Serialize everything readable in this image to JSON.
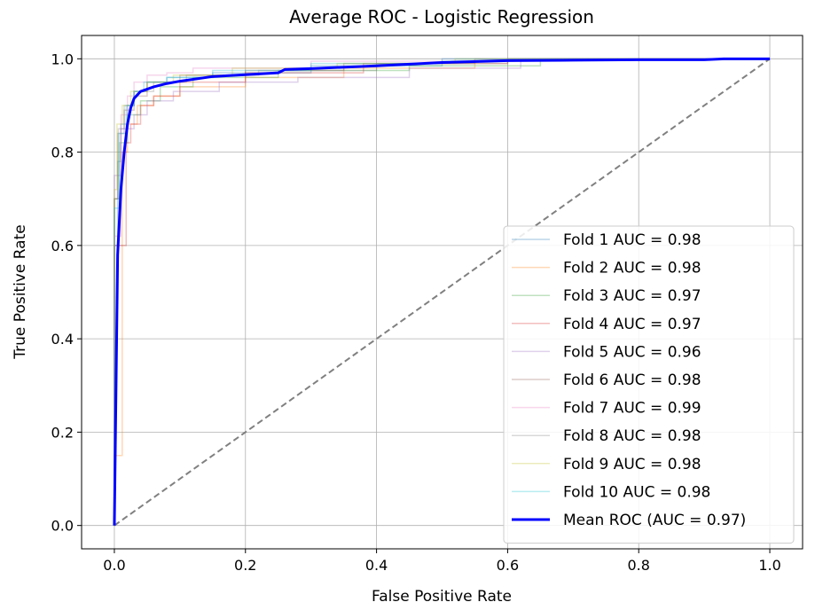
{
  "chart_data": {
    "type": "line",
    "title": "Average ROC - Logistic Regression",
    "xlabel": "False Positive Rate",
    "ylabel": "True Positive Rate",
    "xlim": [
      -0.05,
      1.05
    ],
    "ylim": [
      -0.05,
      1.05
    ],
    "xticks": [
      0.0,
      0.2,
      0.4,
      0.6,
      0.8,
      1.0
    ],
    "yticks": [
      0.0,
      0.2,
      0.4,
      0.6,
      0.8,
      1.0
    ],
    "xtick_labels": [
      "0.0",
      "0.2",
      "0.4",
      "0.6",
      "0.8",
      "1.0"
    ],
    "ytick_labels": [
      "0.0",
      "0.2",
      "0.4",
      "0.6",
      "0.8",
      "1.0"
    ],
    "grid": true,
    "legend_position": "lower-right",
    "chance_line": {
      "x": [
        0,
        1
      ],
      "y": [
        0,
        1
      ],
      "color": "#808080",
      "style": "dashed"
    },
    "series": [
      {
        "name": "Fold 1 AUC = 0.98",
        "color": "#1f77b4",
        "opacity": 0.3,
        "x": [
          0,
          0,
          0.005,
          0.005,
          0.01,
          0.01,
          0.02,
          0.02,
          0.03,
          0.03,
          0.05,
          0.05,
          0.08,
          0.08,
          0.15,
          0.15,
          0.3,
          0.3,
          0.5,
          0.5,
          0.7,
          1.0
        ],
        "y": [
          0,
          0.6,
          0.6,
          0.78,
          0.78,
          0.86,
          0.86,
          0.9,
          0.9,
          0.93,
          0.93,
          0.95,
          0.95,
          0.96,
          0.96,
          0.97,
          0.97,
          0.985,
          0.985,
          0.995,
          1.0,
          1.0
        ]
      },
      {
        "name": "Fold 2 AUC = 0.98",
        "color": "#ff7f0e",
        "opacity": 0.3,
        "x": [
          0,
          0,
          0.012,
          0.012,
          0.02,
          0.02,
          0.035,
          0.035,
          0.06,
          0.06,
          0.1,
          0.1,
          0.2,
          0.2,
          0.35,
          0.35,
          0.55,
          0.55,
          0.75,
          1.0
        ],
        "y": [
          0,
          0.15,
          0.15,
          0.8,
          0.8,
          0.86,
          0.86,
          0.9,
          0.9,
          0.92,
          0.92,
          0.94,
          0.94,
          0.96,
          0.96,
          0.98,
          0.98,
          0.995,
          1.0,
          1.0
        ]
      },
      {
        "name": "Fold 3 AUC = 0.97",
        "color": "#2ca02c",
        "opacity": 0.3,
        "x": [
          0,
          0,
          0.008,
          0.008,
          0.02,
          0.02,
          0.04,
          0.04,
          0.07,
          0.07,
          0.12,
          0.12,
          0.25,
          0.25,
          0.45,
          0.45,
          0.65,
          0.65,
          1.0
        ],
        "y": [
          0,
          0.7,
          0.7,
          0.82,
          0.82,
          0.88,
          0.88,
          0.91,
          0.91,
          0.94,
          0.94,
          0.96,
          0.96,
          0.975,
          0.975,
          0.985,
          0.985,
          1.0,
          1.0
        ]
      },
      {
        "name": "Fold 4 AUC = 0.97",
        "color": "#d62728",
        "opacity": 0.3,
        "x": [
          0,
          0,
          0.018,
          0.018,
          0.025,
          0.025,
          0.04,
          0.04,
          0.06,
          0.06,
          0.1,
          0.1,
          0.2,
          0.2,
          0.38,
          0.38,
          0.6,
          0.6,
          1.0
        ],
        "y": [
          0,
          0.6,
          0.6,
          0.82,
          0.82,
          0.86,
          0.86,
          0.9,
          0.9,
          0.92,
          0.92,
          0.95,
          0.95,
          0.97,
          0.97,
          0.99,
          0.99,
          1.0,
          1.0
        ]
      },
      {
        "name": "Fold 5 AUC = 0.96",
        "color": "#9467bd",
        "opacity": 0.3,
        "x": [
          0,
          0,
          0.01,
          0.01,
          0.03,
          0.03,
          0.05,
          0.05,
          0.09,
          0.09,
          0.16,
          0.16,
          0.28,
          0.28,
          0.45,
          0.45,
          0.62,
          0.62,
          1.0
        ],
        "y": [
          0,
          0.75,
          0.75,
          0.85,
          0.85,
          0.88,
          0.88,
          0.91,
          0.91,
          0.93,
          0.93,
          0.95,
          0.95,
          0.96,
          0.96,
          0.98,
          0.98,
          1.0,
          1.0
        ]
      },
      {
        "name": "Fold 6 AUC = 0.98",
        "color": "#8c564b",
        "opacity": 0.3,
        "x": [
          0,
          0,
          0.005,
          0.005,
          0.015,
          0.015,
          0.03,
          0.03,
          0.05,
          0.05,
          0.1,
          0.1,
          0.2,
          0.2,
          0.35,
          0.35,
          0.55,
          0.55,
          1.0
        ],
        "y": [
          0,
          0.7,
          0.7,
          0.84,
          0.84,
          0.89,
          0.89,
          0.92,
          0.92,
          0.95,
          0.95,
          0.965,
          0.965,
          0.975,
          0.975,
          0.99,
          0.99,
          1.0,
          1.0
        ]
      },
      {
        "name": "Fold 7 AUC = 0.99",
        "color": "#e377c2",
        "opacity": 0.3,
        "x": [
          0,
          0,
          0.01,
          0.01,
          0.02,
          0.02,
          0.03,
          0.03,
          0.05,
          0.05,
          0.08,
          0.08,
          0.12,
          0.12,
          0.3,
          0.3,
          0.5,
          0.5,
          1.0
        ],
        "y": [
          0,
          0.62,
          0.62,
          0.88,
          0.88,
          0.92,
          0.92,
          0.95,
          0.95,
          0.965,
          0.965,
          0.97,
          0.97,
          0.98,
          0.98,
          0.995,
          0.995,
          1.0,
          1.0
        ]
      },
      {
        "name": "Fold 8 AUC = 0.98",
        "color": "#7f7f7f",
        "opacity": 0.3,
        "x": [
          0,
          0,
          0.006,
          0.006,
          0.015,
          0.015,
          0.03,
          0.03,
          0.06,
          0.06,
          0.11,
          0.11,
          0.22,
          0.22,
          0.4,
          0.4,
          0.6,
          0.6,
          1.0
        ],
        "y": [
          0,
          0.7,
          0.7,
          0.85,
          0.85,
          0.9,
          0.9,
          0.93,
          0.93,
          0.95,
          0.95,
          0.965,
          0.965,
          0.975,
          0.975,
          0.99,
          0.99,
          1.0,
          1.0
        ]
      },
      {
        "name": "Fold 9 AUC = 0.98",
        "color": "#bcbd22",
        "opacity": 0.3,
        "x": [
          0,
          0,
          0.004,
          0.004,
          0.012,
          0.012,
          0.025,
          0.025,
          0.05,
          0.05,
          0.09,
          0.09,
          0.18,
          0.18,
          0.34,
          0.34,
          0.52,
          0.52,
          1.0
        ],
        "y": [
          0,
          0.72,
          0.72,
          0.86,
          0.86,
          0.9,
          0.9,
          0.93,
          0.93,
          0.95,
          0.95,
          0.965,
          0.965,
          0.98,
          0.98,
          0.99,
          0.99,
          1.0,
          1.0
        ]
      },
      {
        "name": "Fold 10 AUC = 0.98",
        "color": "#17becf",
        "opacity": 0.3,
        "x": [
          0,
          0,
          0.007,
          0.007,
          0.018,
          0.018,
          0.03,
          0.03,
          0.045,
          0.045,
          0.08,
          0.08,
          0.15,
          0.15,
          0.3,
          0.3,
          0.5,
          0.5,
          1.0
        ],
        "y": [
          0,
          0.68,
          0.68,
          0.84,
          0.84,
          0.9,
          0.9,
          0.93,
          0.93,
          0.95,
          0.95,
          0.96,
          0.96,
          0.975,
          0.975,
          0.99,
          0.99,
          1.0,
          1.0
        ]
      }
    ],
    "mean_series": {
      "name": "Mean ROC (AUC = 0.97)",
      "color": "#0000ff",
      "x": [
        0.0,
        0.005,
        0.01,
        0.015,
        0.02,
        0.025,
        0.03,
        0.04,
        0.05,
        0.06,
        0.08,
        0.1,
        0.15,
        0.2,
        0.25,
        0.26,
        0.3,
        0.4,
        0.5,
        0.6,
        0.7,
        0.8,
        0.9,
        0.93,
        1.0
      ],
      "y": [
        0.0,
        0.58,
        0.72,
        0.8,
        0.86,
        0.895,
        0.915,
        0.93,
        0.935,
        0.94,
        0.947,
        0.952,
        0.962,
        0.966,
        0.97,
        0.977,
        0.979,
        0.985,
        0.992,
        0.996,
        0.997,
        0.998,
        0.998,
        1.0,
        1.0
      ]
    }
  }
}
